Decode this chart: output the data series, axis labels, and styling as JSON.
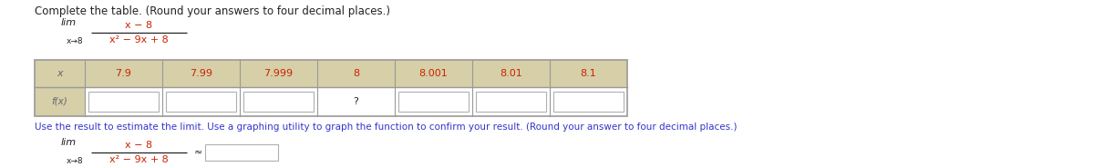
{
  "title": "Complete the table. (Round your answers to four decimal places.)",
  "limit_num": "x − 8",
  "limit_den": "x² − 9x + 8",
  "limit_sub": "x → 8",
  "x_values": [
    "x",
    "7.9",
    "7.99",
    "7.999",
    "8",
    "8.001",
    "8.01",
    "8.1"
  ],
  "fx_label": "f(x)",
  "approx_symbol": "≈",
  "bottom_text": "Use the result to estimate the limit. Use a graphing utility to graph the function to confirm your result. (Round your answer to four decimal places.)",
  "bg_color": "#ffffff",
  "tan_bg": "#d6cfa8",
  "table_border": "#999999",
  "input_box_border": "#b0b0b0",
  "red_color": "#cc2200",
  "black_color": "#222222",
  "gray_color": "#666666",
  "blue_color": "#3333cc",
  "white": "#ffffff",
  "title_fs": 8.5,
  "body_fs": 8.0,
  "lim_fs": 8.0,
  "sub_fs": 6.5
}
